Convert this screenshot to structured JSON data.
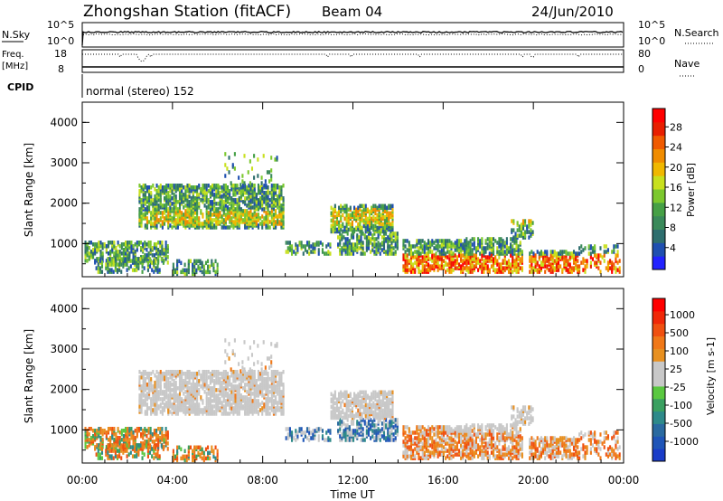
{
  "header": {
    "title": "Zhongshan Station (fitACF)",
    "beam": "Beam 04",
    "date": "24/Jun/2010"
  },
  "status_panels": {
    "nsky_label": "N.Sky",
    "nsearch_label": "N.Search",
    "freq_label_1": "Freq.",
    "freq_label_2": "[MHz]",
    "nave_label": "Nave",
    "cpid_label": "CPID",
    "cpid_value": "normal (stereo) 152",
    "nsky_ticks": [
      "10^5",
      "10^0"
    ],
    "nsearch_ticks": [
      "10^5",
      "10^0"
    ],
    "freq_ticks": [
      "18",
      "8"
    ],
    "nave_ticks": [
      "80",
      "0"
    ]
  },
  "chart_data": [
    {
      "type": "heatmap",
      "ylabel": "Slant Range [km]",
      "ylim": [
        180,
        4500
      ],
      "yticks": [
        "4000",
        "3000",
        "2000",
        "1000"
      ],
      "colorbar": {
        "label": "Power [dB]",
        "ticks": [
          "28",
          "24",
          "20",
          "16",
          "12",
          "8",
          "4"
        ],
        "colors": [
          "#2222ff",
          "#1f4fb0",
          "#2e6e6e",
          "#3a8a5a",
          "#46a046",
          "#7cc82e",
          "#c8e01e",
          "#f0b800",
          "#f08c00",
          "#f05a00",
          "#e81e00",
          "#ff0000"
        ]
      }
    },
    {
      "type": "heatmap",
      "ylabel": "Slant Range [km]",
      "ylim": [
        180,
        4500
      ],
      "yticks": [
        "4000",
        "3000",
        "2000",
        "1000"
      ],
      "colorbar": {
        "label": "Velocity [m s-1]",
        "ticks": [
          "1000",
          "500",
          "100",
          "25",
          "-25",
          "-100",
          "-500",
          "-1000"
        ],
        "colors": [
          "#1a3cc8",
          "#1f55b8",
          "#2a6aa0",
          "#2e8a8a",
          "#3aa060",
          "#5ac840",
          "#c8c8c8",
          "#c8c8c8",
          "#e89020",
          "#f07818",
          "#f05010",
          "#f02808",
          "#ff0000"
        ]
      }
    }
  ],
  "xaxis": {
    "label": "Time UT",
    "ticks": [
      "00:00",
      "04:00",
      "08:00",
      "12:00",
      "16:00",
      "20:00",
      "00:00"
    ]
  }
}
